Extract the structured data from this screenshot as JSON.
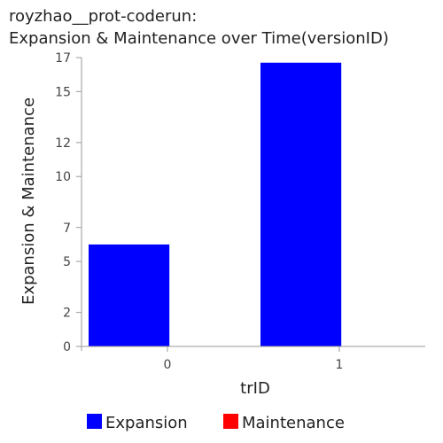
{
  "title": {
    "line1": "royzhao__prot-coderun:",
    "line2": "Expansion & Maintenance over Time(versionID)"
  },
  "chart_data": {
    "type": "bar",
    "categories": [
      "0",
      "1"
    ],
    "series": [
      {
        "name": "Expansion",
        "values": [
          6,
          16.7
        ],
        "color": "#0000ff"
      },
      {
        "name": "Maintenance",
        "values": [
          0,
          0
        ],
        "color": "#ff0000"
      }
    ],
    "xlabel": "trID",
    "ylabel": "Expansion & Maintenance",
    "ylim": [
      0,
      17
    ],
    "yticks": [
      0,
      2,
      5,
      7,
      10,
      12,
      15,
      17
    ],
    "grid": false,
    "legend_position": "bottom"
  }
}
